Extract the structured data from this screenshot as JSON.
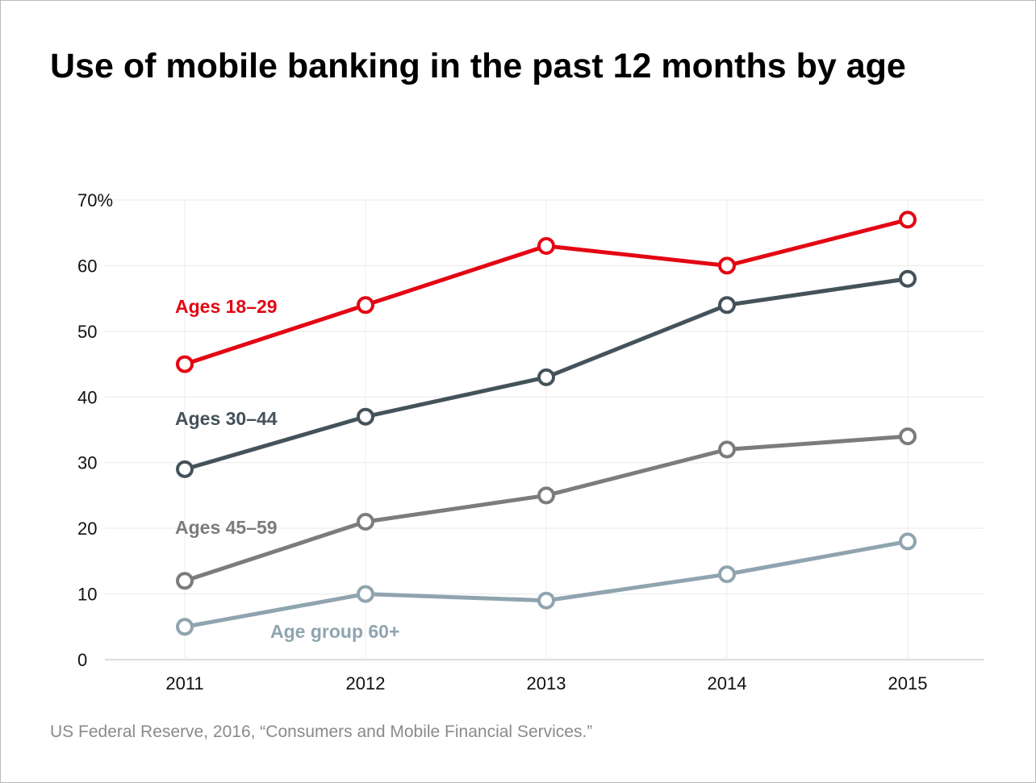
{
  "chart_data": {
    "type": "line",
    "title": "Use of mobile banking in the past 12 months by age",
    "source": "US Federal Reserve, 2016, “Consumers and Mobile Financial Services.”",
    "x": [
      "2011",
      "2012",
      "2013",
      "2014",
      "2015"
    ],
    "ylim": [
      0,
      70
    ],
    "yticks": [
      "0",
      "10",
      "20",
      "30",
      "40",
      "50",
      "60",
      "70%"
    ],
    "grid": true,
    "series": [
      {
        "name": "Ages 18–29",
        "color": "#e30613",
        "values": [
          45,
          54,
          63,
          60,
          67
        ]
      },
      {
        "name": "Ages 30–44",
        "color": "#44525a",
        "values": [
          29,
          37,
          43,
          54,
          58
        ]
      },
      {
        "name": "Ages 45–59",
        "color": "#7d7b7b",
        "values": [
          12,
          21,
          25,
          32,
          34
        ]
      },
      {
        "name": "Age group 60+",
        "color": "#8fa4ae",
        "values": [
          5,
          10,
          9,
          13,
          18
        ]
      }
    ]
  }
}
